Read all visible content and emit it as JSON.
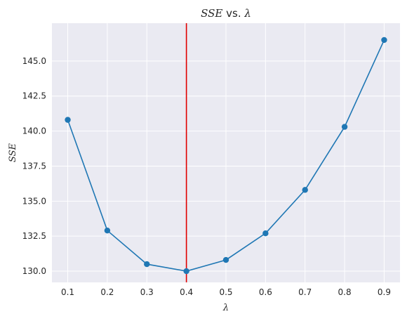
{
  "chart_data": {
    "type": "line",
    "title_main": "SSE",
    "title_sep": " vs. ",
    "title_var": "λ",
    "xlabel": "λ",
    "ylabel": "SSE",
    "x": [
      0.1,
      0.2,
      0.3,
      0.4,
      0.5,
      0.6,
      0.7,
      0.8,
      0.9
    ],
    "series": [
      {
        "values": [
          140.8,
          132.9,
          130.5,
          130.0,
          130.8,
          132.7,
          135.8,
          140.3,
          146.5
        ],
        "color": "#1f77b4"
      }
    ],
    "xticks": [
      0.1,
      0.2,
      0.3,
      0.4,
      0.5,
      0.6,
      0.7,
      0.8,
      0.9
    ],
    "xtick_labels": [
      "0.1",
      "0.2",
      "0.3",
      "0.4",
      "0.5",
      "0.6",
      "0.7",
      "0.8",
      "0.9"
    ],
    "yticks": [
      130.0,
      132.5,
      135.0,
      137.5,
      140.0,
      142.5,
      145.0
    ],
    "ytick_labels": [
      "130.0",
      "132.5",
      "135.0",
      "137.5",
      "140.0",
      "142.5",
      "145.0"
    ],
    "xlim": [
      0.06,
      0.94
    ],
    "ylim": [
      129.2,
      147.7
    ],
    "vline": {
      "x": 0.4,
      "color": "#e00000"
    },
    "grid": true,
    "background": "#eaeaf2"
  }
}
